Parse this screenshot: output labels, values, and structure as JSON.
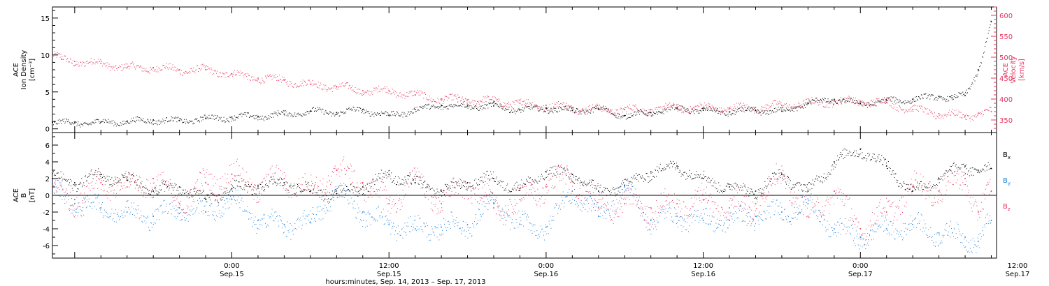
{
  "colors": {
    "axis": "#000000",
    "density": "#000000",
    "velocity": "#e8365f",
    "bx": "#000000",
    "by": "#1a7fdc",
    "bz": "#e8365f"
  },
  "chart_data": [
    {
      "type": "scatter",
      "panel": "top",
      "x_unit": "hours since Sep.14 00:00",
      "xlim": [
        10.3,
        82.4
      ],
      "ylabel_lines": [
        "ACE",
        "Ion Density",
        "[cm⁻³]"
      ],
      "ylim": [
        -0.5,
        16.5
      ],
      "yticks": [
        0,
        5,
        10,
        15
      ],
      "y2label_lines": [
        "ACE",
        "Velocity",
        "[km/s]"
      ],
      "y2lim": [
        320,
        620
      ],
      "y2ticks": [
        350,
        400,
        450,
        500,
        550,
        600
      ],
      "series": [
        {
          "key": "density",
          "axis": "left",
          "x": [
            10.3,
            12,
            14,
            16,
            18,
            20,
            22,
            24,
            26,
            28,
            30,
            32,
            34,
            36,
            38,
            40,
            42,
            44,
            46,
            48,
            50,
            52,
            54,
            56,
            58,
            60,
            62,
            64,
            66,
            68,
            70,
            72,
            74,
            76,
            78,
            79,
            80,
            81,
            82
          ],
          "y": [
            0.9,
            0.8,
            0.9,
            1.0,
            1.2,
            1.1,
            1.4,
            1.6,
            1.7,
            2.0,
            2.4,
            2.2,
            2.6,
            1.8,
            2.6,
            3.2,
            3.1,
            3.1,
            2.6,
            2.8,
            2.5,
            2.7,
            1.8,
            2.2,
            2.8,
            2.5,
            2.3,
            2.5,
            2.4,
            3.5,
            4.0,
            3.4,
            3.8,
            4.0,
            4.4,
            4.2,
            4.5,
            8.0,
            14.5
          ]
        },
        {
          "key": "velocity",
          "axis": "right",
          "x": [
            10.3,
            11,
            12,
            14,
            16,
            18,
            20,
            22,
            24,
            26,
            28,
            30,
            32,
            34,
            36,
            38,
            40,
            42,
            44,
            46,
            48,
            50,
            52,
            54,
            56,
            58,
            60,
            62,
            64,
            66,
            68,
            70,
            72,
            74,
            76,
            78,
            80,
            81,
            82
          ],
          "y": [
            505,
            495,
            490,
            485,
            475,
            475,
            470,
            470,
            460,
            450,
            445,
            435,
            430,
            420,
            420,
            410,
            400,
            398,
            395,
            390,
            385,
            380,
            375,
            375,
            375,
            380,
            380,
            378,
            380,
            385,
            390,
            395,
            395,
            392,
            375,
            365,
            360,
            365,
            370
          ]
        }
      ]
    },
    {
      "type": "scatter",
      "panel": "bottom",
      "x_unit": "hours since Sep.14 00:00",
      "xlim": [
        10.3,
        82.4
      ],
      "ylabel_lines": [
        "ACE",
        "B",
        "[nT]"
      ],
      "ylim": [
        -7.5,
        7.5
      ],
      "yticks": [
        -6,
        -4,
        -2,
        0,
        2,
        4,
        6
      ],
      "zero_line": true,
      "series": [
        {
          "key": "bx",
          "label_main": "B",
          "label_sub": "x",
          "x": [
            10.3,
            12,
            14,
            16,
            18,
            20,
            22,
            24,
            26,
            28,
            30,
            32,
            34,
            36,
            38,
            40,
            42,
            44,
            46,
            48,
            50,
            52,
            54,
            56,
            58,
            60,
            62,
            64,
            66,
            68,
            70,
            72,
            74,
            76,
            78,
            80,
            81,
            82
          ],
          "y": [
            2.0,
            1.5,
            2.5,
            1.8,
            0.5,
            1.0,
            -0.5,
            0.8,
            1.2,
            1.5,
            0.5,
            0.2,
            1.0,
            2.5,
            1.5,
            0.5,
            1.5,
            2.0,
            0.8,
            2.8,
            2.5,
            0.5,
            1.2,
            2.8,
            3.5,
            2.0,
            1.0,
            0.5,
            2.5,
            0.5,
            4.0,
            5.5,
            3.5,
            0.5,
            2.0,
            3.5,
            3.0,
            3.2
          ]
        },
        {
          "key": "by",
          "label_main": "B",
          "label_sub": "y",
          "x": [
            10.3,
            12,
            14,
            16,
            18,
            20,
            22,
            24,
            26,
            28,
            30,
            32,
            34,
            36,
            38,
            40,
            42,
            44,
            46,
            48,
            50,
            52,
            54,
            56,
            58,
            60,
            62,
            64,
            66,
            68,
            70,
            72,
            74,
            76,
            78,
            80,
            81,
            82
          ],
          "y": [
            0.5,
            -1.0,
            -1.5,
            -2.0,
            -2.5,
            -1.5,
            -2.0,
            -0.5,
            -3.0,
            -3.5,
            -3.2,
            0.5,
            -2.0,
            -3.5,
            -4.0,
            -3.8,
            -3.5,
            -1.0,
            -3.5,
            -3.8,
            0.5,
            -2.5,
            1.0,
            -3.0,
            -2.5,
            -3.0,
            -3.0,
            -2.5,
            -2.0,
            -1.0,
            -4.0,
            -5.0,
            -4.0,
            -3.5,
            -4.5,
            -5.0,
            -5.5,
            -3.0
          ]
        },
        {
          "key": "bz",
          "label_main": "B",
          "label_sub": "z",
          "x": [
            10.3,
            12,
            14,
            16,
            18,
            20,
            22,
            24,
            26,
            28,
            30,
            32,
            34,
            36,
            38,
            40,
            42,
            44,
            46,
            48,
            50,
            52,
            54,
            56,
            58,
            60,
            62,
            64,
            66,
            68,
            70,
            72,
            74,
            76,
            78,
            80,
            81,
            82
          ],
          "y": [
            0.5,
            -0.5,
            1.5,
            1.0,
            2.0,
            -1.0,
            1.5,
            2.5,
            1.0,
            2.0,
            0.5,
            3.0,
            1.5,
            -1.0,
            2.0,
            -1.0,
            1.5,
            -1.5,
            -0.5,
            1.0,
            2.5,
            -1.5,
            -1.0,
            -1.5,
            -1.0,
            -0.5,
            -1.5,
            -1.0,
            2.5,
            -2.5,
            0.5,
            -4.0,
            -2.0,
            1.0,
            0.5,
            2.0,
            -2.0,
            0.5
          ]
        }
      ]
    }
  ],
  "x_axis": {
    "ticks": [
      {
        "x": 24,
        "time": "0:00",
        "date": "Sep.15"
      },
      {
        "x": 36,
        "time": "12:00",
        "date": "Sep.15"
      },
      {
        "x": 48,
        "time": "0:00",
        "date": "Sep.16"
      },
      {
        "x": 60,
        "time": "12:00",
        "date": "Sep.16"
      },
      {
        "x": 72,
        "time": "0:00",
        "date": "Sep.17"
      },
      {
        "x": 84,
        "time": "12:00",
        "date": "Sep.17"
      }
    ],
    "title": "hours:minutes, Sep. 14, 2013 – Sep. 17, 2013"
  }
}
